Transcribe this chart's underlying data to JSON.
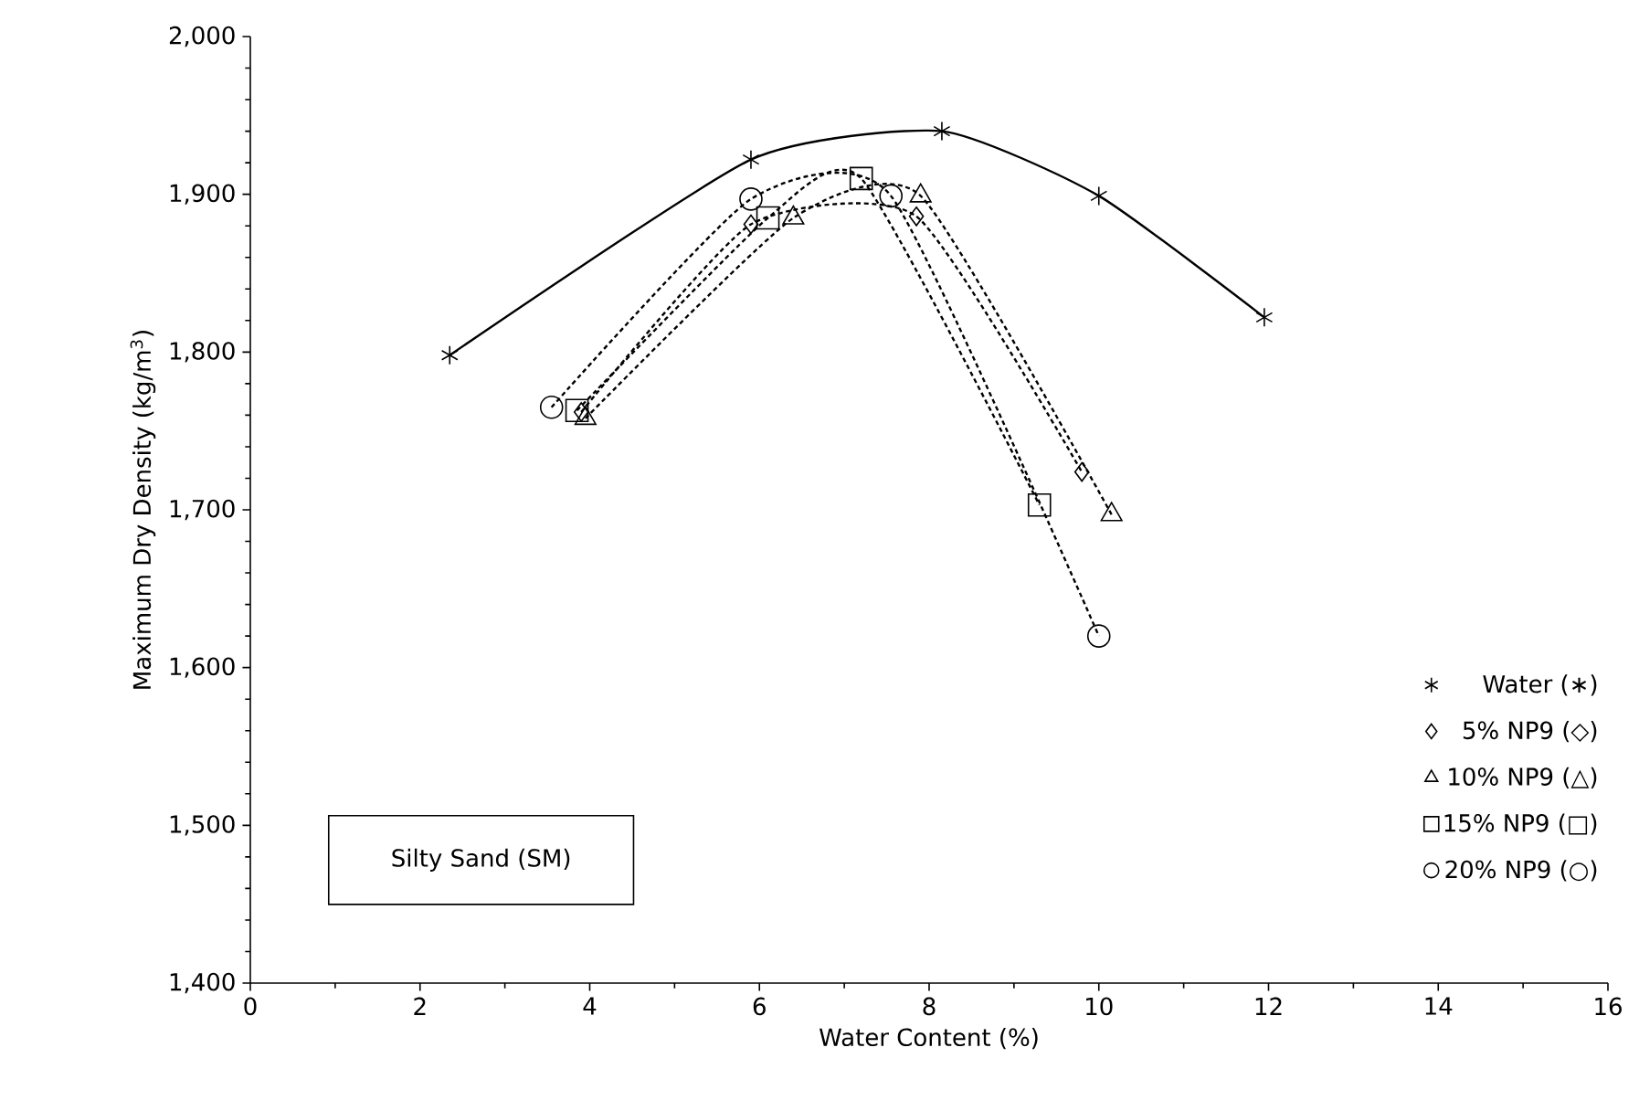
{
  "chart_data": {
    "type": "line",
    "xlabel": "Water Content (%)",
    "ylabel": "Maximum Dry Density (kg/m$^{3}$)",
    "xlim": [
      0,
      16
    ],
    "xticks": [
      0,
      2,
      4,
      6,
      8,
      10,
      12,
      14,
      16
    ],
    "ylim": [
      1400,
      2000
    ],
    "yticks": [
      {
        "value": 1400,
        "label": "1,400"
      },
      {
        "value": 1500,
        "label": "1,500"
      },
      {
        "value": 1600,
        "label": "1,600"
      },
      {
        "value": 1700,
        "label": "1,700"
      },
      {
        "value": 1800,
        "label": "1,800"
      },
      {
        "value": 1900,
        "label": "1,900"
      },
      {
        "value": 2000,
        "label": "2,000"
      }
    ],
    "grid": false,
    "legend": "bottom right",
    "annotations": [
      "Silty Sand (SM)"
    ],
    "series": [
      {
        "name": "Water (∗)",
        "color": "#000000",
        "marker": "cross",
        "line_style": "solid",
        "x": [
          2.35,
          5.9,
          8.15,
          10.0,
          11.95
        ],
        "values": [
          1798,
          1922,
          1940,
          1899,
          1822
        ]
      },
      {
        "name": "5% NP9 (◇)",
        "color": "#000000",
        "marker": "diamond",
        "line_style": "dotted",
        "x": [
          3.9,
          5.9,
          7.85,
          9.8
        ],
        "values": [
          1762,
          1881,
          1886,
          1724
        ]
      },
      {
        "name": "10% NP9 (△)",
        "color": "#000000",
        "marker": "triangle",
        "line_style": "dotted",
        "x": [
          3.95,
          6.4,
          7.9,
          10.15
        ],
        "values": [
          1758,
          1885,
          1899,
          1697
        ]
      },
      {
        "name": "15% NP9 (□)",
        "color": "#000000",
        "marker": "square",
        "line_style": "dotted",
        "x": [
          3.85,
          6.1,
          7.2,
          9.3
        ],
        "values": [
          1763,
          1885,
          1910,
          1703
        ]
      },
      {
        "name": "20% NP9 (○)",
        "color": "#000000",
        "marker": "circle",
        "line_style": "dotted",
        "x": [
          3.55,
          5.9,
          7.55,
          10.0
        ],
        "values": [
          1765,
          1897,
          1899,
          1620
        ]
      }
    ]
  }
}
